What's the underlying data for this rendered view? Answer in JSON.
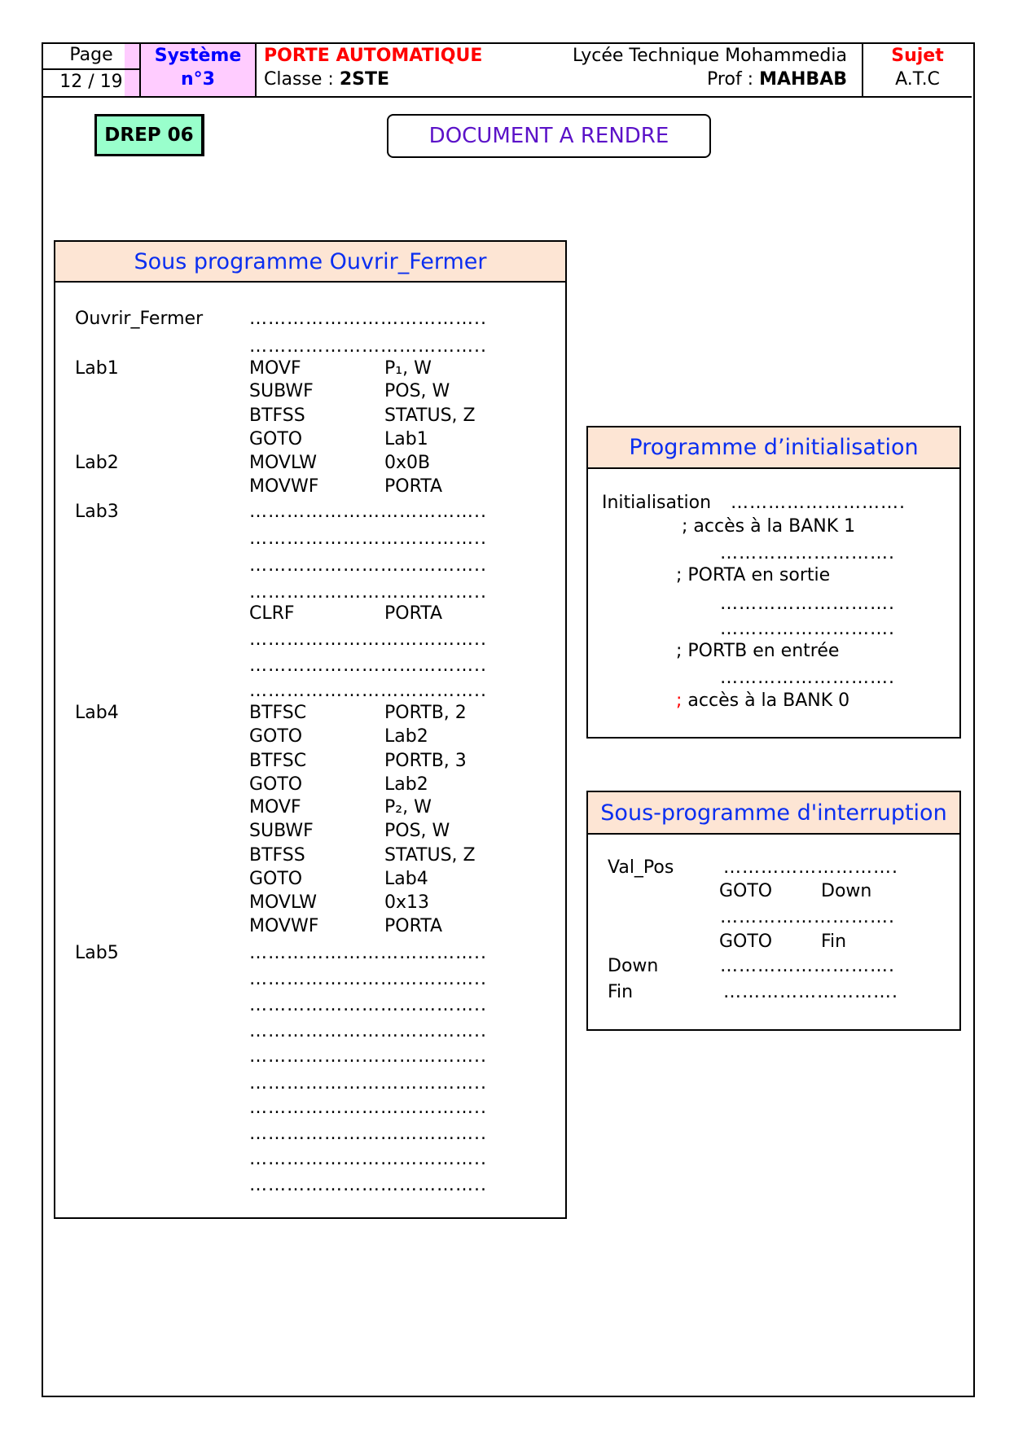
{
  "header": {
    "page_label": "Page",
    "page_value": "12 / 19",
    "system_label": "Système",
    "system_value": "n°3",
    "title": "PORTE AUTOMATIQUE",
    "class_label": "Classe : ",
    "class_value": "2STE",
    "school": "Lycée Technique Mohammedia",
    "prof_label": "Prof : ",
    "prof_value": "MAHBAB",
    "subject_label": "Sujet",
    "subject_value": "A.T.C"
  },
  "colors": {
    "title_red": "#ff0000",
    "system_blue": "#0000ff",
    "system_bg": "#ffccff",
    "drep_bg": "#99ffcc",
    "box_header_bg": "#fde5d4",
    "heading_blue": "#0a2ef0",
    "doc_purple": "#5b12c8"
  },
  "drep": "DREP 06",
  "doc_label": "DOCUMENT A RENDRE",
  "ouvrir": {
    "title": "Sous programme Ouvrir_Fermer",
    "rows": [
      {
        "label": "Ouvrir_Fermer",
        "dots": "……………………………….."
      },
      {
        "dots": "……………………………….."
      },
      {
        "label": "Lab1",
        "op": "MOVF",
        "arg": "P₁, W"
      },
      {
        "op": "SUBWF",
        "arg": "POS, W"
      },
      {
        "op": "BTFSS",
        "arg": "STATUS, Z"
      },
      {
        "op": "GOTO",
        "arg": "Lab1"
      },
      {
        "label": "Lab2",
        "op": "MOVLW",
        "arg": "0x0B"
      },
      {
        "op": "MOVWF",
        "arg": "PORTA"
      },
      {
        "label": "Lab3",
        "dots": "……………………………….."
      },
      {
        "dots": "……………………………….."
      },
      {
        "dots": "……………………………….."
      },
      {
        "dots": "……………………………….."
      },
      {
        "op": "CLRF",
        "arg": "PORTA"
      },
      {
        "dots": "……………………………….."
      },
      {
        "dots": "……………………………….."
      },
      {
        "dots": "……………………………….."
      },
      {
        "label": "Lab4",
        "op": "BTFSC",
        "arg": "PORTB, 2"
      },
      {
        "op": "GOTO",
        "arg": "Lab2"
      },
      {
        "op": "BTFSC",
        "arg": "PORTB, 3"
      },
      {
        "op": "GOTO",
        "arg": "Lab2"
      },
      {
        "op": "MOVF",
        "arg": "P₂, W"
      },
      {
        "op": "SUBWF",
        "arg": "POS, W"
      },
      {
        "op": "BTFSS",
        "arg": "STATUS, Z"
      },
      {
        "op": "GOTO",
        "arg": "Lab4"
      },
      {
        "op": "MOVLW",
        "arg": "0x13"
      },
      {
        "op": "MOVWF",
        "arg": "PORTA"
      },
      {
        "label": "Lab5",
        "dots": "……………………………….."
      },
      {
        "dots": "……………………………….."
      },
      {
        "dots": "……………………………….."
      },
      {
        "dots": "……………………………….."
      },
      {
        "dots": "……………………………….."
      },
      {
        "dots": "……………………………….."
      },
      {
        "dots": "……………………………….."
      },
      {
        "dots": "……………………………….."
      },
      {
        "dots": "……………………………….."
      },
      {
        "dots": "……………………………….."
      }
    ]
  },
  "init": {
    "title": "Programme d’initialisation",
    "label": "Initialisation",
    "dots": "……………………….",
    "c1": "; accès à la BANK 1",
    "c2": "; PORTA en sortie",
    "c3": "; PORTB en entrée",
    "c4_semi": ";",
    "c4": " accès à la BANK 0"
  },
  "interrupt": {
    "title": "Sous-programme d'interruption",
    "val_pos": "Val_Pos",
    "goto": "GOTO",
    "down": "Down",
    "fin": "Fin",
    "dots": "………………………."
  }
}
